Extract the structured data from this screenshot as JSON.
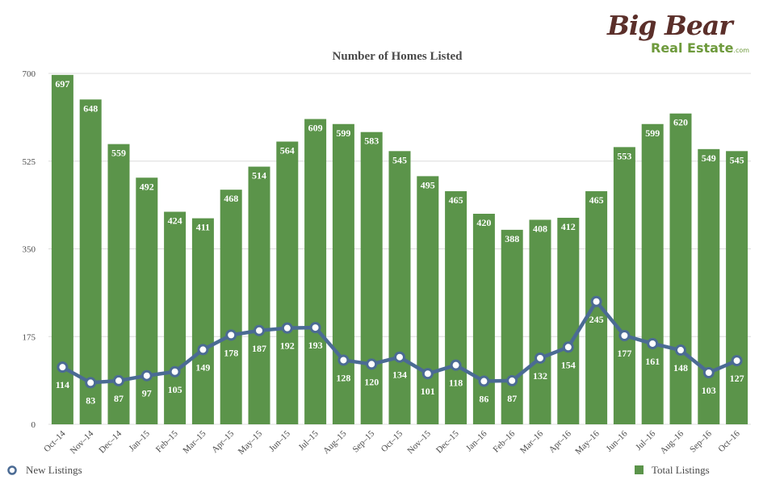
{
  "logo": {
    "brand": "Big Bear",
    "sub": "Real Estate",
    "com": ".com"
  },
  "colors": {
    "bar": "#5b944a",
    "line": "#4b6b94",
    "grid": "#dcdcdc",
    "text": "#4a4a4a",
    "label": "#ffffff"
  },
  "chart_data": {
    "type": "bar",
    "title": "Number of Homes Listed",
    "xlabel": "",
    "ylabel": "",
    "ylim": [
      0,
      700
    ],
    "yticks": [
      0,
      175,
      350,
      525,
      700
    ],
    "grid": true,
    "legend": "bottom",
    "categories": [
      "Oct–14",
      "Nov–14",
      "Dec–14",
      "Jan–15",
      "Feb–15",
      "Mar–15",
      "Apr–15",
      "May–15",
      "Jun–15",
      "Jul–15",
      "Aug–15",
      "Sep–15",
      "Oct–15",
      "Nov–15",
      "Dec–15",
      "Jan–16",
      "Feb–16",
      "Mar–16",
      "Apr–16",
      "May–16",
      "Jun–16",
      "Jul–16",
      "Aug–16",
      "Sep–16",
      "Oct–16"
    ],
    "series": [
      {
        "name": "Total Listings",
        "type": "bar",
        "values": [
          697,
          648,
          559,
          492,
          424,
          411,
          468,
          514,
          564,
          609,
          599,
          583,
          545,
          495,
          465,
          420,
          388,
          408,
          412,
          465,
          553,
          599,
          620,
          549,
          545
        ]
      },
      {
        "name": "New Listings",
        "type": "line",
        "values": [
          114,
          83,
          87,
          97,
          105,
          149,
          178,
          187,
          192,
          193,
          128,
          120,
          134,
          101,
          118,
          86,
          87,
          132,
          154,
          245,
          177,
          161,
          148,
          103,
          127
        ]
      }
    ]
  }
}
